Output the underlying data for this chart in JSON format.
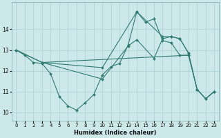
{
  "xlabel": "Humidex (Indice chaleur)",
  "bg_color": "#cce8e8",
  "line_color": "#2e7b72",
  "grid_color": "#aacfcf",
  "xlim": [
    -0.5,
    23.5
  ],
  "ylim": [
    9.6,
    15.3
  ],
  "xticks": [
    0,
    1,
    2,
    3,
    4,
    5,
    6,
    7,
    8,
    9,
    10,
    11,
    12,
    13,
    14,
    15,
    16,
    17,
    18,
    19,
    20,
    21,
    22,
    23
  ],
  "yticks": [
    10,
    11,
    12,
    13,
    14
  ],
  "lines": [
    {
      "x": [
        0,
        1,
        2,
        3,
        4,
        5,
        6,
        7,
        8,
        9,
        10,
        11,
        12,
        13,
        14,
        15,
        16,
        17,
        18,
        19,
        20
      ],
      "y": [
        13.0,
        12.75,
        12.4,
        12.35,
        11.85,
        10.75,
        10.3,
        10.1,
        10.45,
        10.85,
        11.8,
        12.2,
        12.35,
        13.25,
        14.85,
        14.35,
        14.5,
        13.45,
        13.35,
        12.75,
        12.75
      ]
    },
    {
      "x": [
        0,
        3,
        20,
        21,
        22,
        23
      ],
      "y": [
        13.0,
        12.4,
        12.75,
        11.1,
        10.65,
        11.0
      ]
    },
    {
      "x": [
        0,
        3,
        10,
        13,
        14,
        16,
        17,
        18,
        19,
        20,
        21,
        22,
        23
      ],
      "y": [
        13.0,
        12.4,
        11.6,
        13.2,
        13.5,
        12.6,
        13.55,
        13.65,
        13.55,
        12.85,
        11.1,
        10.65,
        11.0
      ]
    },
    {
      "x": [
        3,
        10,
        14,
        17,
        18,
        19,
        20,
        21,
        22,
        23
      ],
      "y": [
        12.4,
        12.15,
        14.85,
        13.65,
        13.65,
        13.55,
        12.85,
        11.1,
        10.65,
        11.0
      ]
    }
  ]
}
